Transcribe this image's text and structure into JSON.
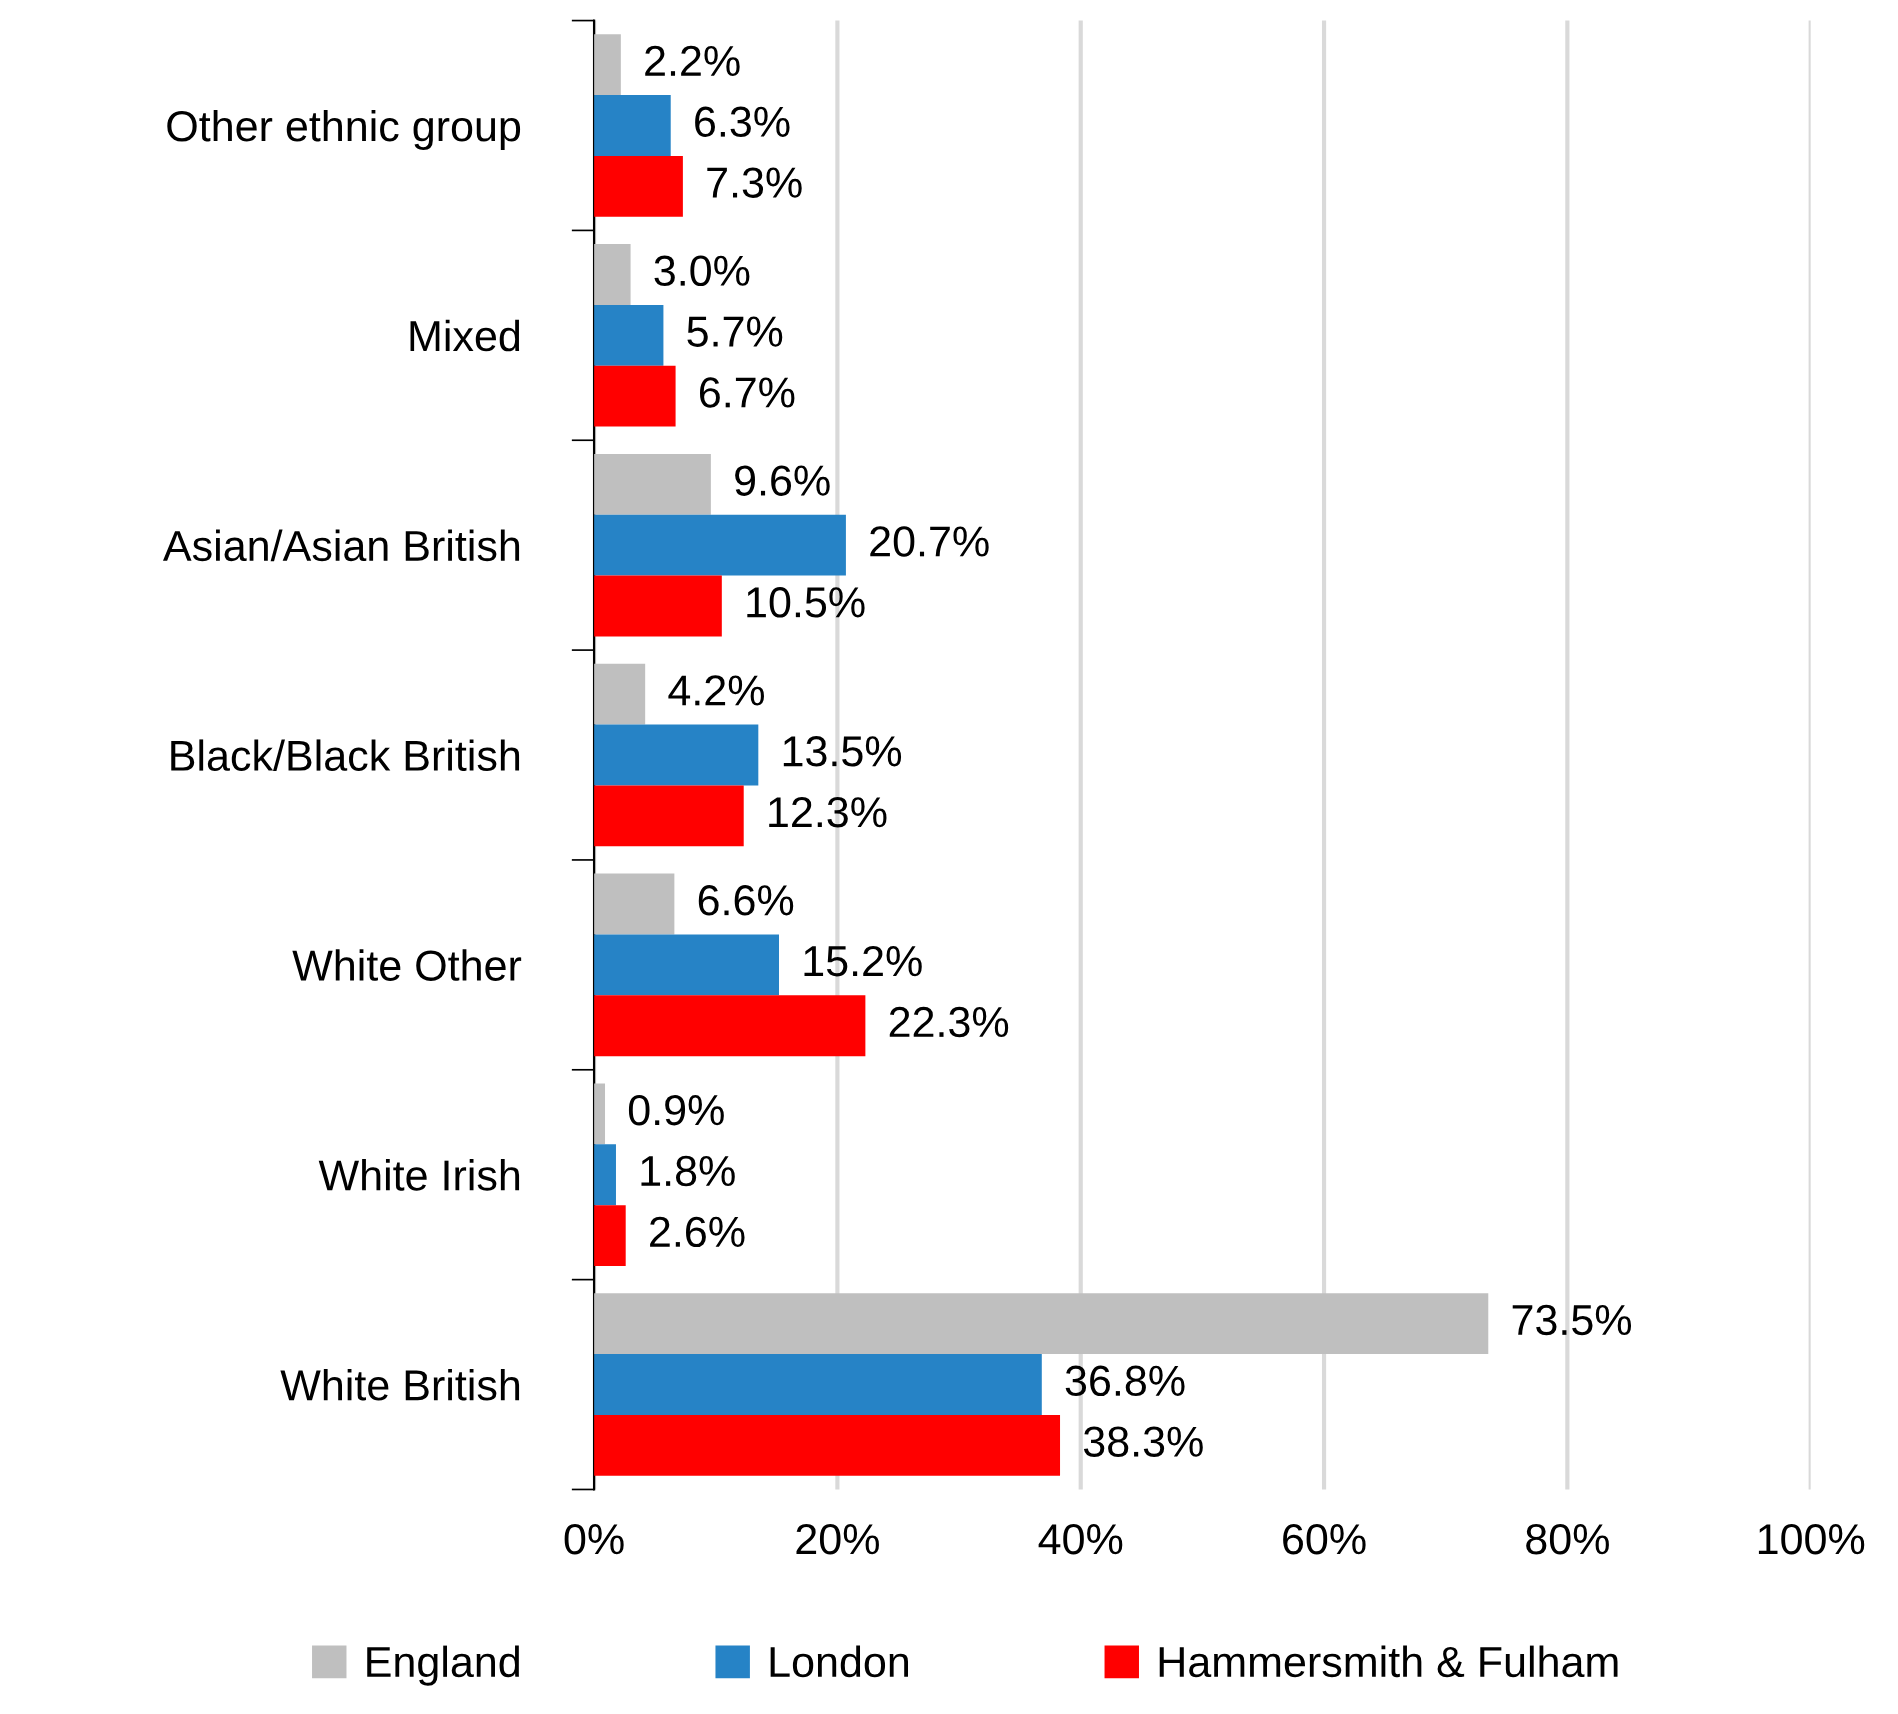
{
  "chart_data": {
    "type": "bar",
    "orientation": "horizontal",
    "categories": [
      "Other ethnic group",
      "Mixed",
      "Asian/Asian British",
      "Black/Black British",
      "White Other",
      "White Irish",
      "White British"
    ],
    "series": [
      {
        "name": "England",
        "color": "#bfbfbf",
        "values": [
          2.2,
          3.0,
          9.6,
          4.2,
          6.6,
          0.9,
          73.5
        ],
        "value_labels": [
          "2.2%",
          "3.0%",
          "9.6%",
          "4.2%",
          "6.6%",
          "0.9%",
          "73.5%"
        ]
      },
      {
        "name": "London",
        "color": "#2683c6",
        "values": [
          6.3,
          5.7,
          20.7,
          13.5,
          15.2,
          1.8,
          36.8
        ],
        "value_labels": [
          "6.3%",
          "5.7%",
          "20.7%",
          "13.5%",
          "15.2%",
          "1.8%",
          "36.8%"
        ]
      },
      {
        "name": "Hammersmith & Fulham",
        "color": "#ff0000",
        "values": [
          7.3,
          6.7,
          10.5,
          12.3,
          22.3,
          2.6,
          38.3
        ],
        "value_labels": [
          "7.3%",
          "6.7%",
          "10.5%",
          "12.3%",
          "22.3%",
          "2.6%",
          "38.3%"
        ]
      }
    ],
    "xlim": [
      0,
      100
    ],
    "xticks": [
      {
        "value": 0,
        "label": "0%"
      },
      {
        "value": 20,
        "label": "20%"
      },
      {
        "value": 40,
        "label": "40%"
      },
      {
        "value": 60,
        "label": "60%"
      },
      {
        "value": 80,
        "label": "80%"
      },
      {
        "value": 100,
        "label": "100%"
      }
    ],
    "grid": "x",
    "legend": "bottom"
  }
}
